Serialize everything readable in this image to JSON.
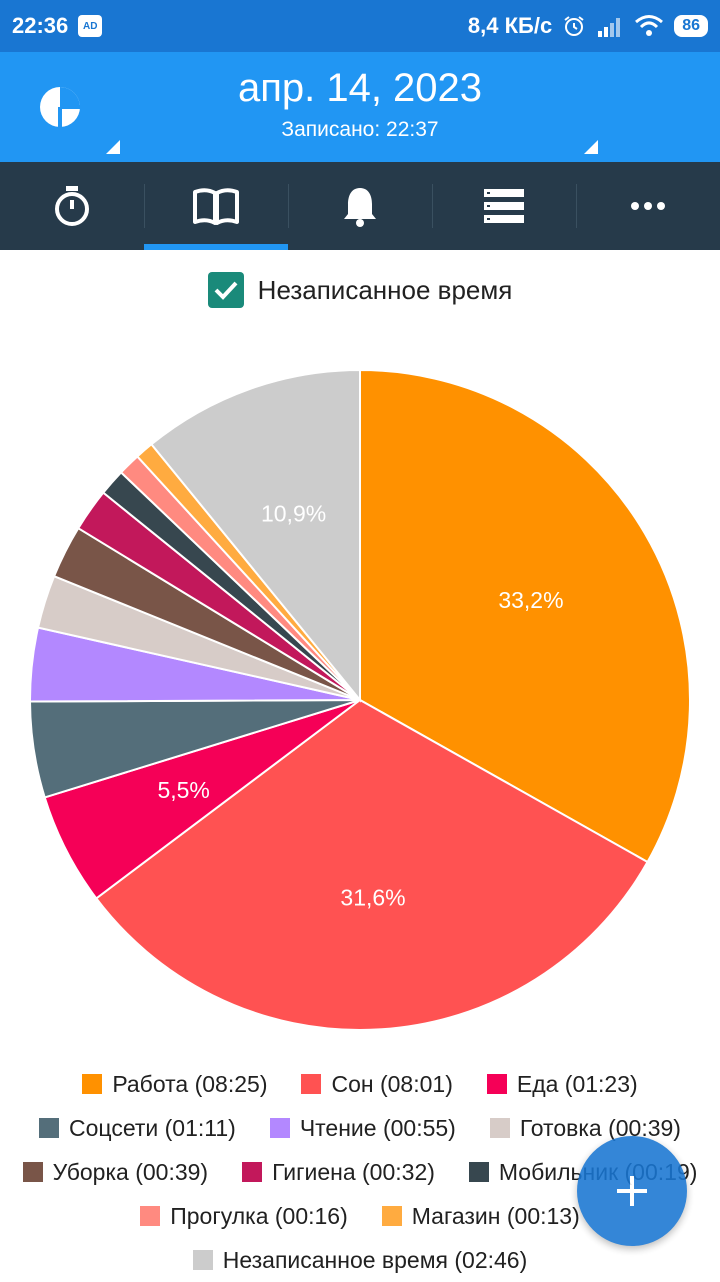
{
  "status_bar": {
    "time": "22:36",
    "ad_badge": "AD",
    "network_speed": "8,4 КБ/с",
    "battery": "86"
  },
  "header": {
    "date": "апр. 14, 2023",
    "recorded": "Записано: 22:37",
    "logo_icon": "pie-chart-logo-icon"
  },
  "tabs": [
    {
      "icon": "stopwatch-icon",
      "active": false
    },
    {
      "icon": "book-icon",
      "active": true
    },
    {
      "icon": "bell-icon",
      "active": false
    },
    {
      "icon": "list-icon",
      "active": false
    },
    {
      "icon": "more-icon",
      "active": false
    }
  ],
  "checkbox": {
    "label": "Незаписанное время",
    "checked": true
  },
  "chart_data": {
    "type": "pie",
    "slices": [
      {
        "label": "Работа (08:25)",
        "value": 33.2,
        "display": "33,2%",
        "color": "#ff9100"
      },
      {
        "label": "Сон (08:01)",
        "value": 31.6,
        "display": "31,6%",
        "color": "#ff5252"
      },
      {
        "label": "Еда (01:23)",
        "value": 5.5,
        "display": "5,5%",
        "color": "#f50057"
      },
      {
        "label": "Соцсети (01:11)",
        "value": 4.7,
        "display": "",
        "color": "#546e7a"
      },
      {
        "label": "Чтение (00:55)",
        "value": 3.6,
        "display": "",
        "color": "#b388ff"
      },
      {
        "label": "Готовка (00:39)",
        "value": 2.6,
        "display": "",
        "color": "#d7ccc8"
      },
      {
        "label": "Уборка (00:39)",
        "value": 2.6,
        "display": "",
        "color": "#795548"
      },
      {
        "label": "Гигиена  (00:32)",
        "value": 2.1,
        "display": "",
        "color": "#c2185b"
      },
      {
        "label": "Мобильник  (00:19)",
        "value": 1.3,
        "display": "",
        "color": "#37474f"
      },
      {
        "label": "Прогулка (00:16)",
        "value": 1.1,
        "display": "",
        "color": "#ff8a80"
      },
      {
        "label": "Магазин (00:13)",
        "value": 0.9,
        "display": "",
        "color": "#ffab40"
      },
      {
        "label": "Незаписанное время (02:46)",
        "value": 10.9,
        "display": "10,9%",
        "color": "#cccccc"
      }
    ]
  },
  "legend_rows": [
    [
      0,
      1,
      2
    ],
    [
      3,
      4,
      5
    ],
    [
      6,
      7,
      8
    ],
    [
      9,
      10
    ],
    [
      11
    ]
  ],
  "fab_icon": "plus-icon",
  "colors": {
    "primary": "#2196f3",
    "primary_dark": "#1976d2",
    "tabbar": "#263a4a"
  }
}
